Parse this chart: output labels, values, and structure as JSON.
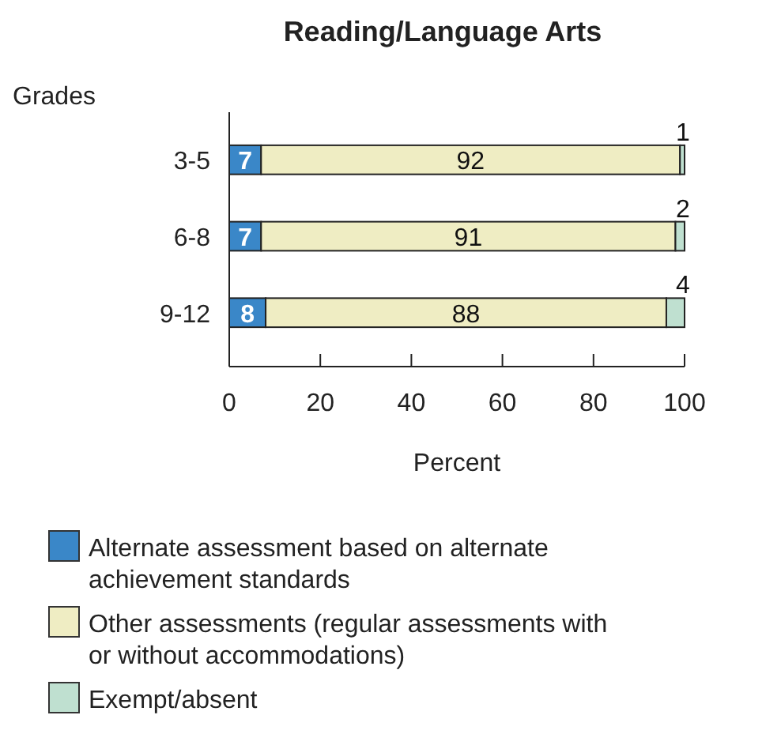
{
  "chart_data": {
    "type": "bar",
    "orientation": "horizontal",
    "stacked": true,
    "title": "Reading/Language Arts",
    "ylabel": "Grades",
    "xlabel": "Percent",
    "categories": [
      "3-5",
      "6-8",
      "9-12"
    ],
    "series": [
      {
        "name": "Alternate assessment based on alternate achievement standards",
        "color": "#3a87c8",
        "values": [
          7,
          7,
          8
        ]
      },
      {
        "name": "Other assessments (regular assessments with or without accommodations)",
        "color": "#efedc3",
        "values": [
          92,
          91,
          88
        ]
      },
      {
        "name": "Exempt/absent",
        "color": "#bfe0d0",
        "values": [
          1,
          2,
          4
        ]
      }
    ],
    "xlim": [
      0,
      100
    ],
    "xticks": [
      0,
      20,
      40,
      60,
      80,
      100
    ],
    "data_labels": true,
    "legend": "bottom"
  }
}
